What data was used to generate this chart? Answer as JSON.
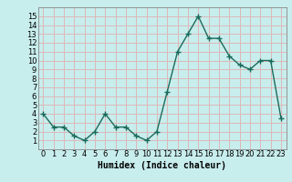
{
  "x": [
    0,
    1,
    2,
    3,
    4,
    5,
    6,
    7,
    8,
    9,
    10,
    11,
    12,
    13,
    14,
    15,
    16,
    17,
    18,
    19,
    20,
    21,
    22,
    23
  ],
  "y": [
    4.0,
    2.5,
    2.5,
    1.5,
    1.0,
    2.0,
    4.0,
    2.5,
    2.5,
    1.5,
    1.0,
    2.0,
    6.5,
    11.0,
    13.0,
    15.0,
    12.5,
    12.5,
    10.5,
    9.5,
    9.0,
    10.0,
    10.0,
    3.5
  ],
  "line_color": "#1a6b5a",
  "marker": "+",
  "marker_size": 4,
  "marker_linewidth": 1.0,
  "line_width": 1.0,
  "xlabel": "Humidex (Indice chaleur)",
  "xlim": [
    -0.5,
    23.5
  ],
  "ylim": [
    0,
    16
  ],
  "yticks": [
    1,
    2,
    3,
    4,
    5,
    6,
    7,
    8,
    9,
    10,
    11,
    12,
    13,
    14,
    15
  ],
  "xticks": [
    0,
    1,
    2,
    3,
    4,
    5,
    6,
    7,
    8,
    9,
    10,
    11,
    12,
    13,
    14,
    15,
    16,
    17,
    18,
    19,
    20,
    21,
    22,
    23
  ],
  "xtick_labels": [
    "0",
    "1",
    "2",
    "3",
    "4",
    "5",
    "6",
    "7",
    "8",
    "9",
    "10",
    "11",
    "12",
    "13",
    "14",
    "15",
    "16",
    "17",
    "18",
    "19",
    "20",
    "21",
    "22",
    "23"
  ],
  "bg_color": "#c8eded",
  "grid_color": "#ddb8b8",
  "xlabel_fontsize": 7,
  "tick_fontsize": 6
}
